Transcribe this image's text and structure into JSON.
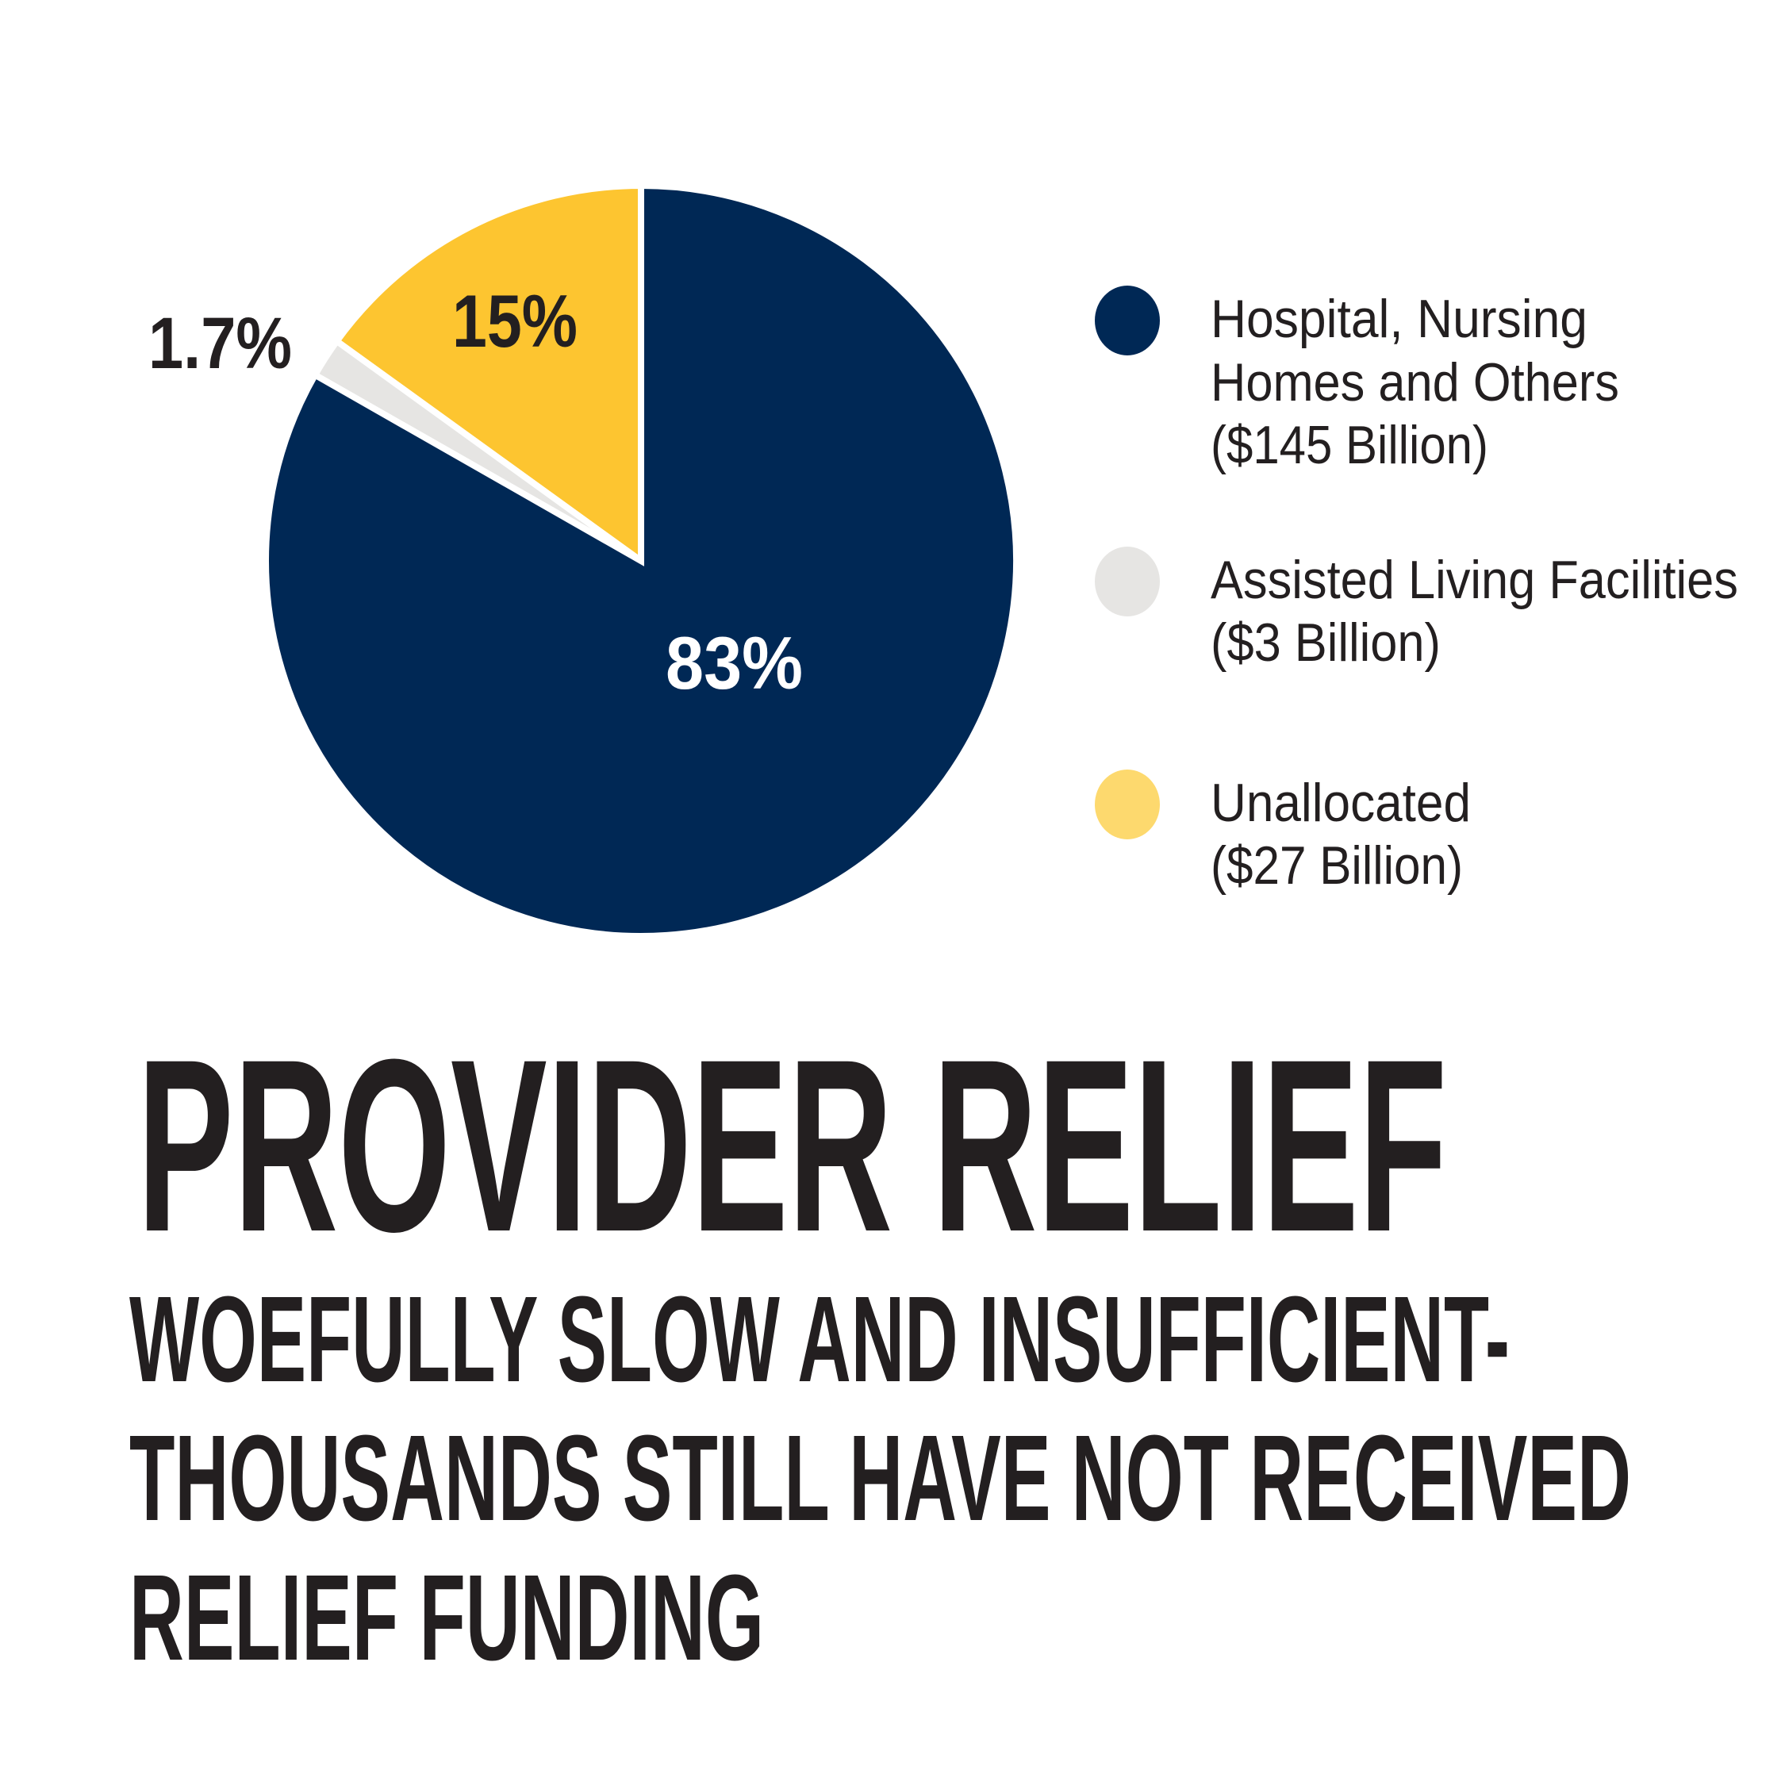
{
  "chart_data": {
    "type": "pie",
    "start": "top",
    "direction": "counterclockwise",
    "slices": [
      {
        "name": "Unallocated",
        "amount": "($27 Billion)",
        "value": 15,
        "label": "15%",
        "color": "#fdc530",
        "legend_color": "#fdd96e",
        "label_color": "#231f20"
      },
      {
        "name": "Assisted Living Facilities",
        "amount": "($3 Billion)",
        "value": 1.7,
        "label": "1.7%",
        "color": "#e6e5e3",
        "legend_color": "#e6e5e3",
        "label_color": "#231f20"
      },
      {
        "name": "Hospital, Nursing Homes and Others",
        "amount": "($145 Billion)",
        "value": 83,
        "label": "83%",
        "color": "#002855",
        "legend_color": "#002855",
        "label_color": "#ffffff"
      }
    ],
    "legend": [
      {
        "lines": [
          "Hospital, Nursing",
          "Homes and Others",
          "($145 Billion)"
        ],
        "color": "#002855"
      },
      {
        "lines": [
          "Assisted Living Facilities",
          "($3 Billion)"
        ],
        "color": "#e6e5e3"
      },
      {
        "lines": [
          "Unallocated",
          "($27 Billion)"
        ],
        "color": "#fdd96e"
      }
    ],
    "legend_position": "right"
  },
  "title": "PROVIDER RELIEF",
  "subtitle_lines": [
    "WOEFULLY SLOW AND INSUFFICIENT-",
    "THOUSANDS STILL HAVE NOT RECEIVED",
    "RELIEF FUNDING"
  ],
  "text_color": "#231f20"
}
